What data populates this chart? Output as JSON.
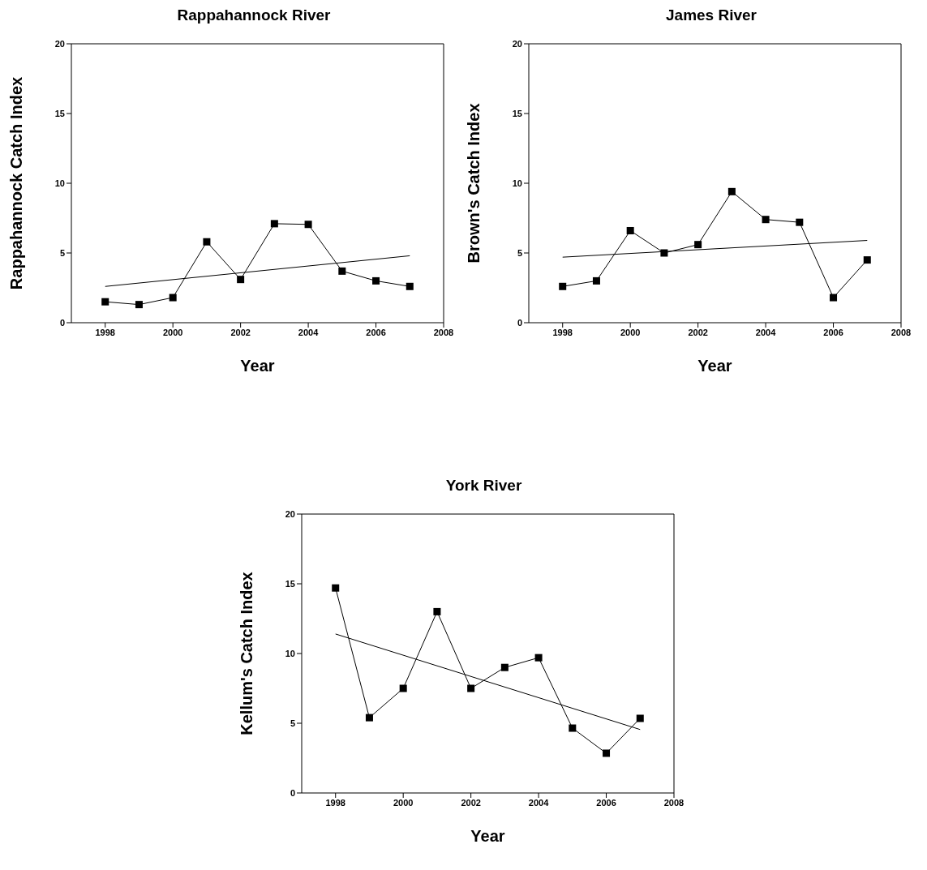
{
  "chart_data": [
    {
      "type": "line",
      "title": "Rappahannock River",
      "xlabel": "Year",
      "ylabel": "Rappahannock Catch Index",
      "xlim": [
        1997,
        2008
      ],
      "xticks": [
        1998,
        2000,
        2002,
        2004,
        2006,
        2008
      ],
      "ylim": [
        0,
        20
      ],
      "yticks": [
        0,
        5,
        10,
        15,
        20
      ],
      "marker": "square",
      "series": [
        {
          "color": "#000000",
          "x": [
            1998,
            1999,
            2000,
            2001,
            2002,
            2003,
            2004,
            2005,
            2006,
            2007
          ],
          "values": [
            1.5,
            1.3,
            1.8,
            5.8,
            3.1,
            7.1,
            7.05,
            3.7,
            3.0,
            2.6
          ]
        },
        {
          "type": "line",
          "color": "#000000",
          "marker": "none",
          "x": [
            1998,
            2007
          ],
          "values": [
            2.6,
            4.8
          ]
        }
      ]
    },
    {
      "type": "line",
      "title": "James River",
      "xlabel": "Year",
      "ylabel": "Brown's Catch Index",
      "xlim": [
        1997,
        2008
      ],
      "xticks": [
        1998,
        2000,
        2002,
        2004,
        2006,
        2008
      ],
      "ylim": [
        0,
        20
      ],
      "yticks": [
        0,
        5,
        10,
        15,
        20
      ],
      "marker": "square",
      "series": [
        {
          "color": "#000000",
          "x": [
            1998,
            1999,
            2000,
            2001,
            2002,
            2003,
            2004,
            2005,
            2006,
            2007
          ],
          "values": [
            2.6,
            3.0,
            6.6,
            5.0,
            5.6,
            9.4,
            7.4,
            7.2,
            1.8,
            4.5
          ]
        },
        {
          "type": "line",
          "color": "#000000",
          "marker": "none",
          "x": [
            1998,
            2007
          ],
          "values": [
            4.7,
            5.9
          ]
        }
      ]
    },
    {
      "type": "line",
      "title": "York River",
      "xlabel": "Year",
      "ylabel": "Kellum's Catch Index",
      "xlim": [
        1997,
        2008
      ],
      "xticks": [
        1998,
        2000,
        2002,
        2004,
        2006,
        2008
      ],
      "ylim": [
        0,
        20
      ],
      "yticks": [
        0,
        5,
        10,
        15,
        20
      ],
      "marker": "square",
      "series": [
        {
          "color": "#000000",
          "x": [
            1998,
            1999,
            2000,
            2001,
            2002,
            2003,
            2004,
            2005,
            2006,
            2007
          ],
          "values": [
            14.7,
            5.4,
            7.5,
            13.0,
            7.5,
            9.0,
            9.7,
            4.65,
            2.85,
            5.35
          ]
        },
        {
          "type": "line",
          "color": "#000000",
          "marker": "none",
          "x": [
            1998,
            2007
          ],
          "values": [
            11.4,
            4.55
          ]
        }
      ]
    }
  ]
}
